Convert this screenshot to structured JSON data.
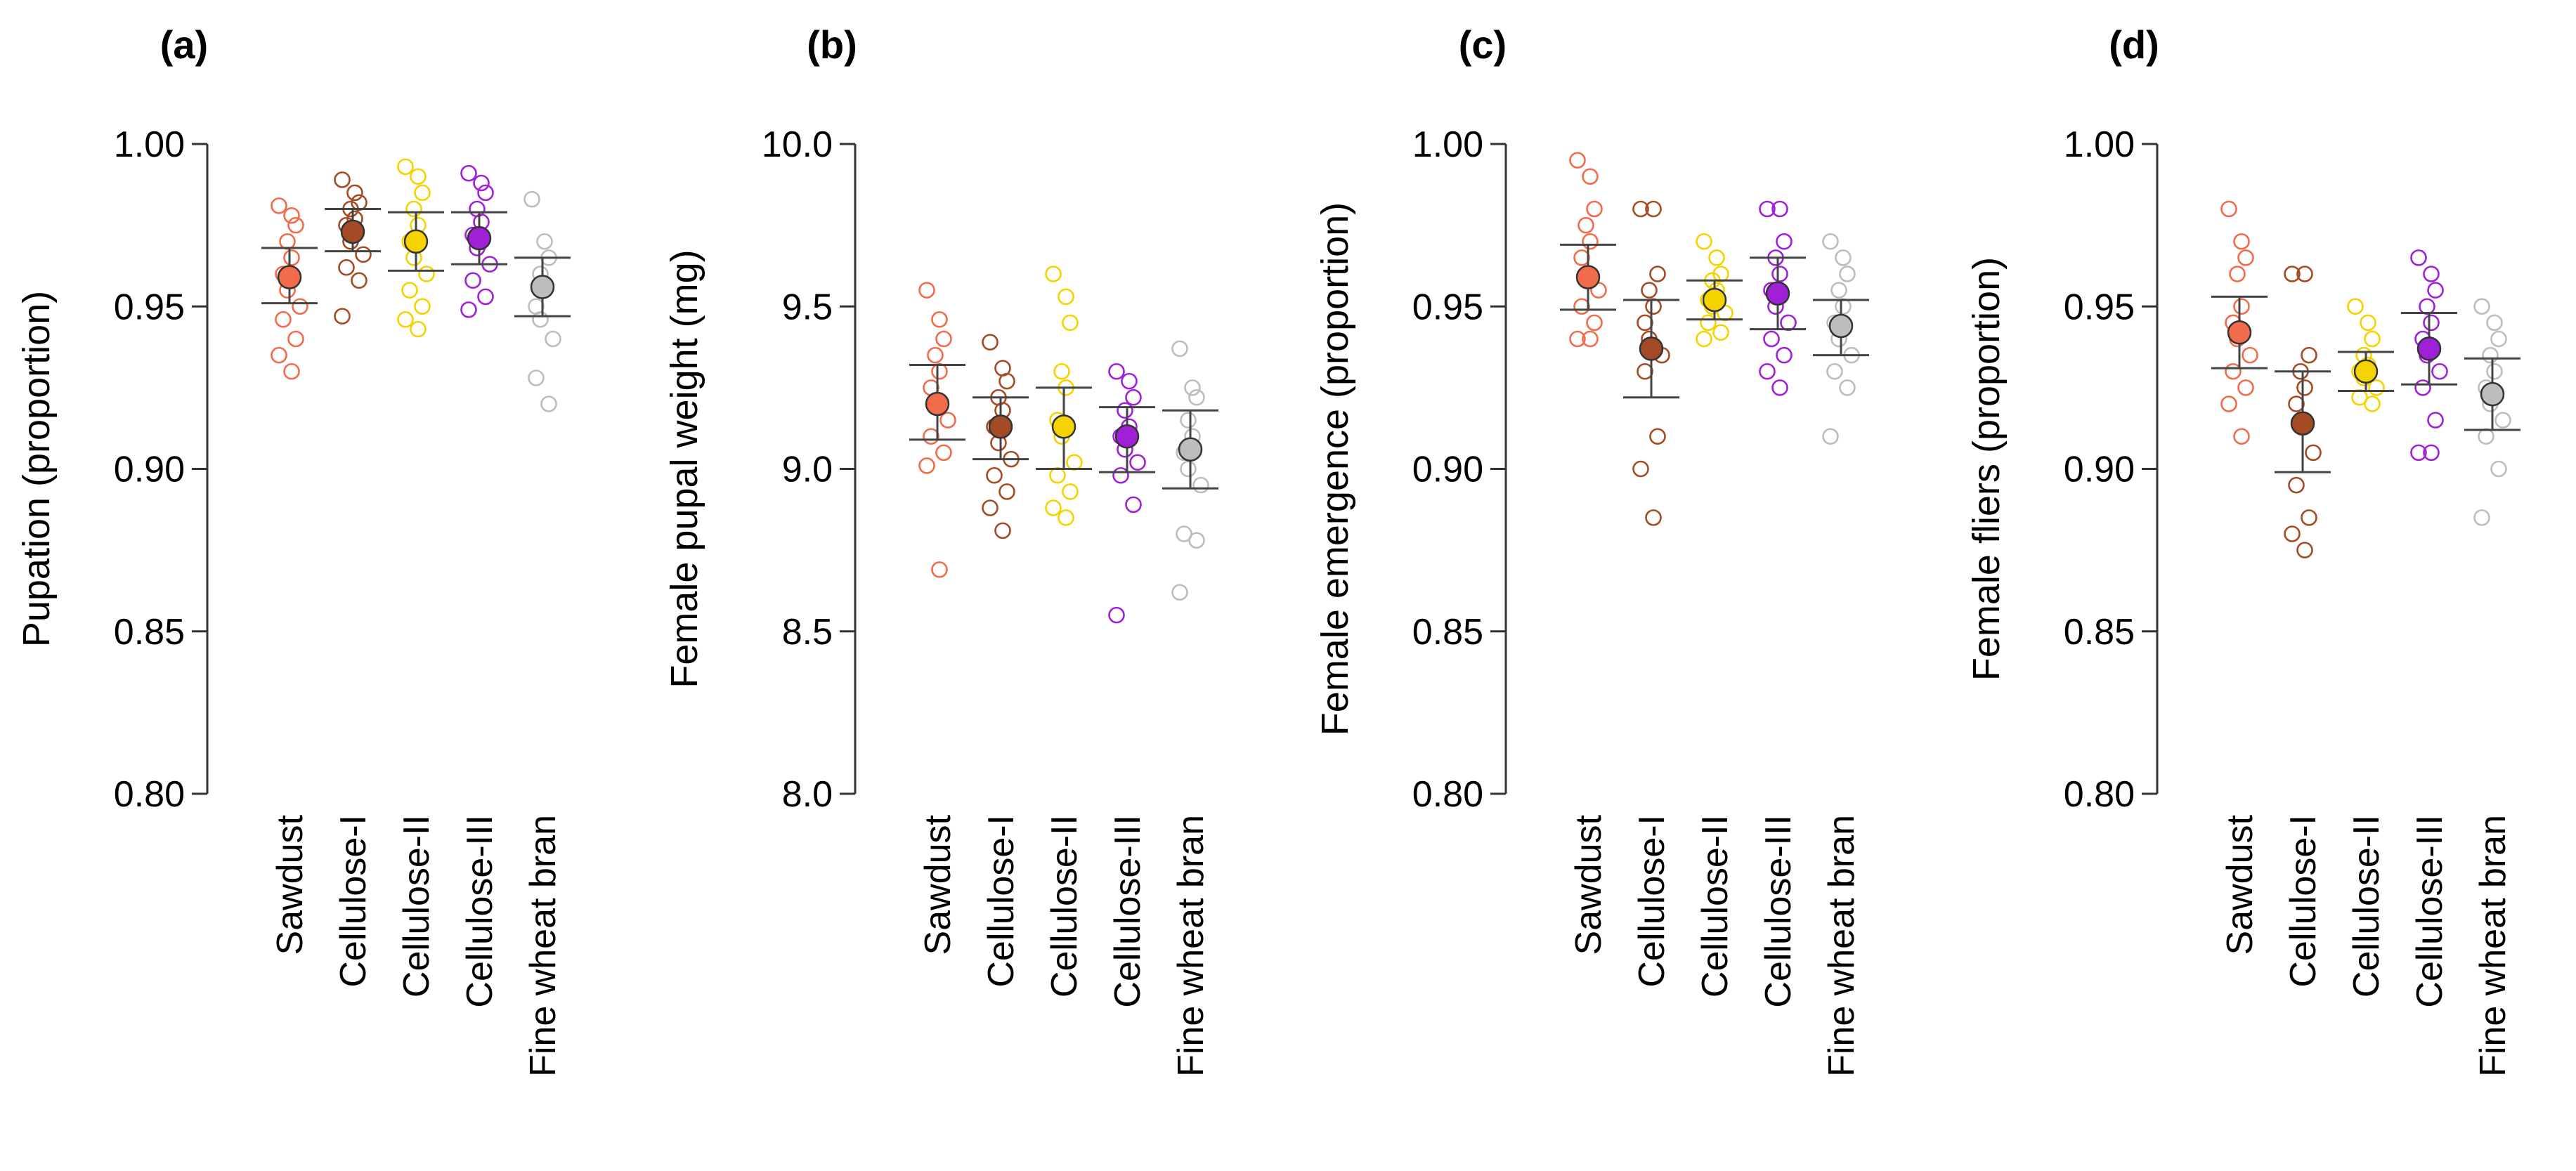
{
  "chart_data": [
    {
      "type": "scatter",
      "panel": "(a)",
      "ylabel": "Pupation (proportion)",
      "ylim": [
        0.8,
        1.0
      ],
      "yticks": [
        "0.80",
        "0.85",
        "0.90",
        "0.95",
        "1.00"
      ],
      "categories": [
        "Sawdust",
        "Cellulose-I",
        "Cellulose-II",
        "Cellulose-III",
        "Fine wheat bran"
      ],
      "colors": [
        "#F26B4A",
        "#A44A24",
        "#F5D300",
        "#A020D8",
        "#BDBDBD"
      ],
      "series": [
        {
          "name": "Sawdust",
          "mean": 0.959,
          "ci": [
            0.951,
            0.968
          ],
          "points": [
            0.981,
            0.978,
            0.975,
            0.97,
            0.965,
            0.96,
            0.955,
            0.95,
            0.946,
            0.94,
            0.935,
            0.93
          ]
        },
        {
          "name": "Cellulose-I",
          "mean": 0.973,
          "ci": [
            0.967,
            0.98
          ],
          "points": [
            0.989,
            0.985,
            0.982,
            0.98,
            0.977,
            0.975,
            0.97,
            0.966,
            0.962,
            0.958,
            0.947
          ]
        },
        {
          "name": "Cellulose-II",
          "mean": 0.97,
          "ci": [
            0.961,
            0.979
          ],
          "points": [
            0.993,
            0.99,
            0.985,
            0.98,
            0.975,
            0.97,
            0.965,
            0.96,
            0.955,
            0.95,
            0.946,
            0.943
          ]
        },
        {
          "name": "Cellulose-III",
          "mean": 0.971,
          "ci": [
            0.963,
            0.979
          ],
          "points": [
            0.991,
            0.988,
            0.985,
            0.98,
            0.976,
            0.972,
            0.968,
            0.963,
            0.958,
            0.953,
            0.949
          ]
        },
        {
          "name": "Fine wheat bran",
          "mean": 0.956,
          "ci": [
            0.947,
            0.965
          ],
          "points": [
            0.983,
            0.97,
            0.965,
            0.96,
            0.955,
            0.95,
            0.946,
            0.94,
            0.928,
            0.92
          ]
        }
      ]
    },
    {
      "type": "scatter",
      "panel": "(b)",
      "ylabel": "Female pupal weight (mg)",
      "ylim": [
        8.0,
        10.0
      ],
      "yticks": [
        "8.0",
        "8.5",
        "9.0",
        "9.5",
        "10.0"
      ],
      "categories": [
        "Sawdust",
        "Cellulose-I",
        "Cellulose-II",
        "Cellulose-III",
        "Fine wheat bran"
      ],
      "colors": [
        "#F26B4A",
        "#A44A24",
        "#F5D300",
        "#A020D8",
        "#BDBDBD"
      ],
      "series": [
        {
          "name": "Sawdust",
          "mean": 9.2,
          "ci": [
            9.09,
            9.32
          ],
          "points": [
            9.55,
            9.46,
            9.4,
            9.35,
            9.3,
            9.25,
            9.2,
            9.15,
            9.1,
            9.05,
            9.01,
            8.69
          ]
        },
        {
          "name": "Cellulose-I",
          "mean": 9.13,
          "ci": [
            9.03,
            9.22
          ],
          "points": [
            9.39,
            9.31,
            9.27,
            9.22,
            9.18,
            9.13,
            9.08,
            9.03,
            8.98,
            8.93,
            8.88,
            8.81
          ]
        },
        {
          "name": "Cellulose-II",
          "mean": 9.13,
          "ci": [
            9.0,
            9.25
          ],
          "points": [
            9.6,
            9.53,
            9.45,
            9.3,
            9.25,
            9.15,
            9.1,
            9.02,
            8.98,
            8.93,
            8.88,
            8.85
          ]
        },
        {
          "name": "Cellulose-III",
          "mean": 9.1,
          "ci": [
            8.99,
            9.19
          ],
          "points": [
            9.3,
            9.27,
            9.22,
            9.18,
            9.13,
            9.1,
            9.06,
            9.02,
            8.98,
            8.89,
            8.55
          ]
        },
        {
          "name": "Fine wheat bran",
          "mean": 9.06,
          "ci": [
            8.94,
            9.18
          ],
          "points": [
            9.37,
            9.25,
            9.22,
            9.15,
            9.1,
            9.05,
            9.0,
            8.95,
            8.8,
            8.78,
            8.62
          ]
        }
      ]
    },
    {
      "type": "scatter",
      "panel": "(c)",
      "ylabel": "Female emergence (proportion)",
      "ylim": [
        0.8,
        1.0
      ],
      "yticks": [
        "0.80",
        "0.85",
        "0.90",
        "0.95",
        "1.00"
      ],
      "categories": [
        "Sawdust",
        "Cellulose-I",
        "Cellulose-II",
        "Cellulose-III",
        "Fine wheat bran"
      ],
      "colors": [
        "#F26B4A",
        "#A44A24",
        "#F5D300",
        "#A020D8",
        "#BDBDBD"
      ],
      "series": [
        {
          "name": "Sawdust",
          "mean": 0.959,
          "ci": [
            0.949,
            0.969
          ],
          "points": [
            0.995,
            0.99,
            0.98,
            0.975,
            0.97,
            0.965,
            0.96,
            0.955,
            0.95,
            0.945,
            0.94,
            0.94
          ]
        },
        {
          "name": "Cellulose-I",
          "mean": 0.937,
          "ci": [
            0.922,
            0.952
          ],
          "points": [
            0.98,
            0.98,
            0.96,
            0.955,
            0.95,
            0.945,
            0.94,
            0.935,
            0.93,
            0.91,
            0.9,
            0.885
          ]
        },
        {
          "name": "Cellulose-II",
          "mean": 0.952,
          "ci": [
            0.946,
            0.958
          ],
          "points": [
            0.97,
            0.965,
            0.96,
            0.958,
            0.955,
            0.952,
            0.95,
            0.948,
            0.945,
            0.942,
            0.94
          ]
        },
        {
          "name": "Cellulose-III",
          "mean": 0.954,
          "ci": [
            0.943,
            0.965
          ],
          "points": [
            0.98,
            0.98,
            0.97,
            0.965,
            0.96,
            0.955,
            0.95,
            0.945,
            0.94,
            0.935,
            0.93,
            0.925
          ]
        },
        {
          "name": "Fine wheat bran",
          "mean": 0.944,
          "ci": [
            0.935,
            0.952
          ],
          "points": [
            0.97,
            0.965,
            0.96,
            0.955,
            0.95,
            0.945,
            0.94,
            0.935,
            0.93,
            0.925,
            0.91
          ]
        }
      ]
    },
    {
      "type": "scatter",
      "panel": "(d)",
      "ylabel": "Female fliers (proportion)",
      "ylim": [
        0.8,
        1.0
      ],
      "yticks": [
        "0.80",
        "0.85",
        "0.90",
        "0.95",
        "1.00"
      ],
      "categories": [
        "Sawdust",
        "Cellulose-I",
        "Cellulose-II",
        "Cellulose-III",
        "Fine wheat bran"
      ],
      "colors": [
        "#F26B4A",
        "#A44A24",
        "#F5D300",
        "#A020D8",
        "#BDBDBD"
      ],
      "series": [
        {
          "name": "Sawdust",
          "mean": 0.942,
          "ci": [
            0.931,
            0.953
          ],
          "points": [
            0.98,
            0.97,
            0.965,
            0.96,
            0.95,
            0.945,
            0.94,
            0.935,
            0.93,
            0.925,
            0.92,
            0.91
          ]
        },
        {
          "name": "Cellulose-I",
          "mean": 0.914,
          "ci": [
            0.899,
            0.93
          ],
          "points": [
            0.96,
            0.96,
            0.935,
            0.93,
            0.925,
            0.92,
            0.915,
            0.905,
            0.895,
            0.885,
            0.88,
            0.875
          ]
        },
        {
          "name": "Cellulose-II",
          "mean": 0.93,
          "ci": [
            0.924,
            0.936
          ],
          "points": [
            0.95,
            0.945,
            0.94,
            0.935,
            0.932,
            0.93,
            0.928,
            0.925,
            0.922,
            0.92
          ]
        },
        {
          "name": "Cellulose-III",
          "mean": 0.937,
          "ci": [
            0.926,
            0.948
          ],
          "points": [
            0.965,
            0.96,
            0.955,
            0.95,
            0.945,
            0.94,
            0.935,
            0.93,
            0.925,
            0.915,
            0.905,
            0.905
          ]
        },
        {
          "name": "Fine wheat bran",
          "mean": 0.923,
          "ci": [
            0.912,
            0.934
          ],
          "points": [
            0.95,
            0.945,
            0.94,
            0.935,
            0.93,
            0.925,
            0.92,
            0.915,
            0.91,
            0.9,
            0.885
          ]
        }
      ]
    }
  ]
}
